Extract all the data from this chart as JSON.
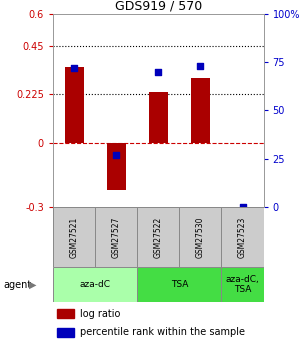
{
  "title": "GDS919 / 570",
  "samples": [
    "GSM27521",
    "GSM27527",
    "GSM27522",
    "GSM27530",
    "GSM27523"
  ],
  "log_ratios": [
    0.35,
    -0.22,
    0.235,
    0.3,
    0.0
  ],
  "percentile_ranks": [
    72,
    27,
    70,
    73,
    0
  ],
  "ylim_left": [
    -0.3,
    0.6
  ],
  "ylim_right": [
    0,
    100
  ],
  "yticks_left": [
    -0.3,
    0,
    0.225,
    0.45,
    0.6
  ],
  "yticks_right": [
    0,
    25,
    50,
    75,
    100
  ],
  "ytick_labels_left": [
    "-0.3",
    "0",
    "0.225",
    "0.45",
    "0.6"
  ],
  "ytick_labels_right": [
    "0",
    "25",
    "50",
    "75",
    "100%"
  ],
  "hlines": [
    0.225,
    0.45
  ],
  "agent_groups": [
    {
      "label": "aza-dC",
      "span": [
        0,
        2
      ],
      "color": "#AAFFAA"
    },
    {
      "label": "TSA",
      "span": [
        2,
        4
      ],
      "color": "#44DD44"
    },
    {
      "label": "aza-dC,\nTSA",
      "span": [
        4,
        5
      ],
      "color": "#44DD44"
    }
  ],
  "bar_color": "#AA0000",
  "dot_color": "#0000BB",
  "bar_width": 0.45,
  "left_tick_color": "#CC0000",
  "right_tick_color": "#0000CC",
  "zero_line_color": "#CC0000",
  "sample_box_color": "#CCCCCC",
  "legend_bar_label": "log ratio",
  "legend_dot_label": "percentile rank within the sample",
  "agent_label": "agent"
}
